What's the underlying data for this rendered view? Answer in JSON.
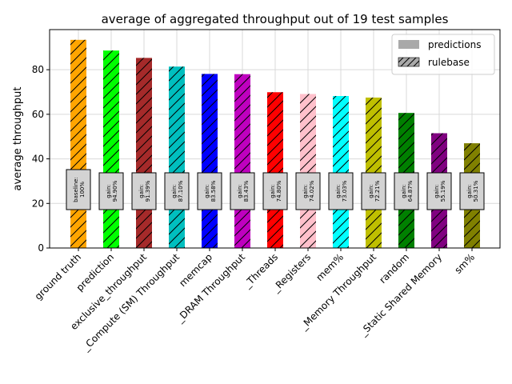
{
  "chart_data": {
    "type": "bar",
    "title": "average of aggregated throughput out of 19 test samples",
    "xlabel": "",
    "ylabel": "average throughput",
    "ylim": [
      0,
      98
    ],
    "yticks": [
      0,
      20,
      40,
      60,
      80
    ],
    "grid": true,
    "legend_position": "top-right",
    "legend": [
      "predictions",
      "rulebase"
    ],
    "categories": [
      "ground truth",
      "prediction",
      "exclusive_throughput",
      "_Compute (SM) Throughput",
      "memcap",
      "_DRAM Throughput",
      "_Threads",
      "_Registers",
      "mem%",
      "_Memory Throughput",
      "random",
      "_Static Shared Memory",
      "sm%"
    ],
    "values": [
      93.4,
      88.6,
      85.3,
      81.4,
      78.1,
      78.0,
      69.9,
      69.1,
      68.2,
      67.5,
      60.6,
      51.5,
      47.0
    ],
    "colors": [
      "#ffa500",
      "#00ff00",
      "#a52a2a",
      "#00bfbf",
      "#0000ff",
      "#bf00bf",
      "#ff0000",
      "#ffc0cb",
      "#00ffff",
      "#bfbf00",
      "#008000",
      "#800080",
      "#808000"
    ],
    "annotations": [
      "baseline:\n100%",
      "gain:\n94.90%",
      "gain:\n91.39%",
      "gain:\n87.10%",
      "gain:\n83.58%",
      "gain:\n83.43%",
      "gain:\n74.80%",
      "gain:\n74.02%",
      "gain:\n73.03%",
      "gain:\n72.21%",
      "gain:\n64.87%",
      "gain:\n55.19%",
      "gain:\n50.31%"
    ]
  }
}
